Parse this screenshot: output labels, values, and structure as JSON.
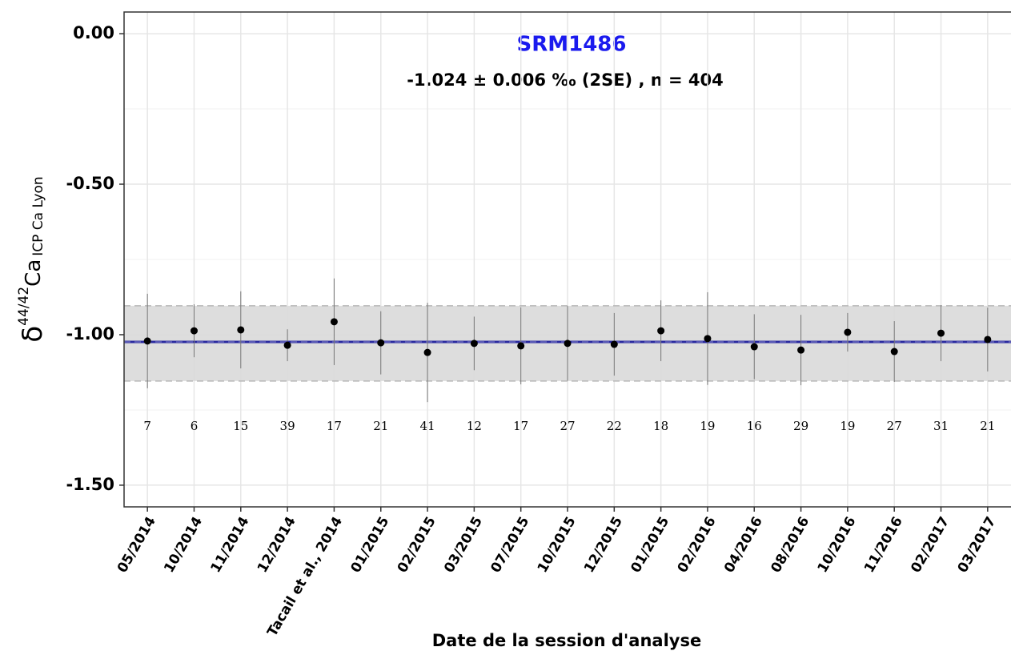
{
  "chart_data": {
    "type": "errorbar",
    "title": "SRM1486",
    "subtitle": "-1.024 ± 0.006 ‰ (2SE) , n =  404",
    "x_label": "Date de la session d'analyse",
    "y_label": {
      "symbol": "δ",
      "superscript": "44/42",
      "element": "Ca",
      "subscript": "ICP Ca Lyon"
    },
    "categories": [
      "05/2014",
      "10/2014",
      "11/2014",
      "12/2014",
      "Tacail et al., 2014",
      "01/2015",
      "02/2015",
      "03/2015",
      "07/2015",
      "10/2015",
      "12/2015",
      "01/2015",
      "02/2016",
      "04/2016",
      "08/2016",
      "10/2016",
      "11/2016",
      "02/2017",
      "03/2017"
    ],
    "values": [
      -1.021,
      -0.987,
      -0.984,
      -1.035,
      -0.957,
      -1.027,
      -1.059,
      -1.029,
      -1.037,
      -1.029,
      -1.032,
      -0.987,
      -1.013,
      -1.04,
      -1.051,
      -0.992,
      -1.056,
      -0.995,
      -1.016
    ],
    "errors": [
      0.157,
      0.088,
      0.128,
      0.053,
      0.144,
      0.105,
      0.165,
      0.089,
      0.128,
      0.124,
      0.104,
      0.101,
      0.154,
      0.108,
      0.117,
      0.064,
      0.101,
      0.093,
      0.106
    ],
    "counts": [
      7,
      6,
      15,
      39,
      17,
      21,
      41,
      12,
      17,
      27,
      22,
      18,
      19,
      16,
      29,
      19,
      27,
      31,
      21
    ],
    "mean": -1.024,
    "band": [
      -1.154,
      -0.904
    ],
    "color": "#000000",
    "mean_color": "#2a2aa0",
    "band_color": "#d9d9d9",
    "title_color": "#1a1aee",
    "ylim": [
      -1.572,
      0.072
    ],
    "yticks": [
      {
        "value": 0,
        "label": "0.00"
      },
      {
        "value": -0.5,
        "label": "-0.50"
      },
      {
        "value": -1,
        "label": "-1.00"
      },
      {
        "value": -1.5,
        "label": "-1.50"
      }
    ],
    "yminorticks": [
      -0.25,
      -0.75,
      -1.25
    ],
    "grid": true
  }
}
